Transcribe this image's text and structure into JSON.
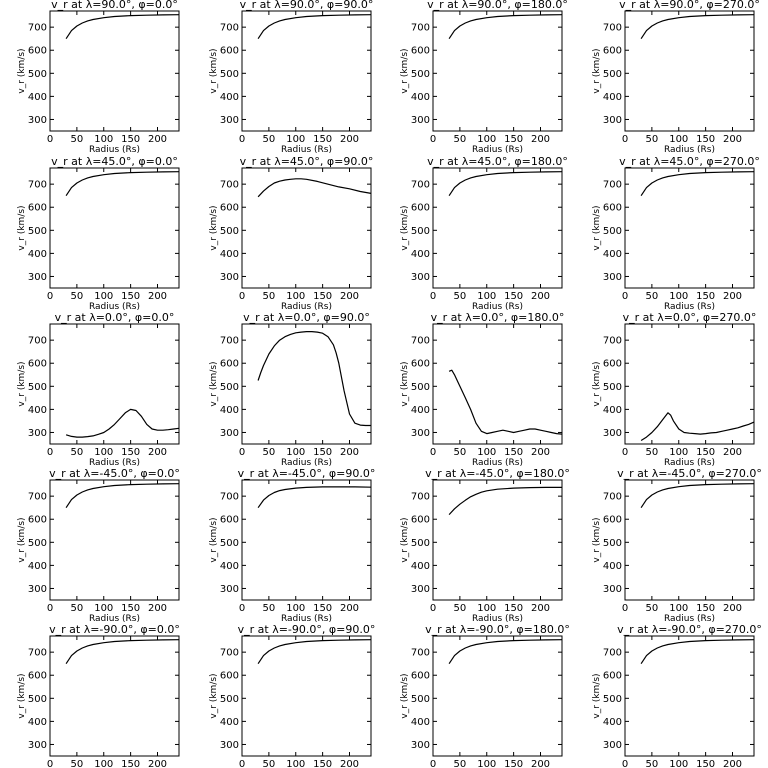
{
  "colors": {
    "background": "#ffffff",
    "ink": "#000000"
  },
  "chart_data": [
    {
      "type": "line",
      "title": "v_r at λ=90.0°, φ=0.0°",
      "xlabel": "Radius (Rs)",
      "ylabel": "v_r (km/s)",
      "xlim": [
        0,
        240
      ],
      "ylim": [
        250,
        770
      ],
      "x_ticks": [
        0,
        50,
        100,
        150,
        200
      ],
      "y_ticks": [
        300,
        400,
        500,
        600,
        700
      ],
      "x": [
        30,
        40,
        50,
        60,
        70,
        80,
        100,
        120,
        150,
        180,
        210,
        240
      ],
      "y": [
        650,
        685,
        705,
        718,
        727,
        733,
        741,
        746,
        750,
        752,
        753,
        754
      ]
    },
    {
      "type": "line",
      "title": "v_r at λ=90.0°, φ=90.0°",
      "xlabel": "Radius (Rs)",
      "ylabel": "v_r (km/s)",
      "xlim": [
        0,
        240
      ],
      "ylim": [
        250,
        770
      ],
      "x_ticks": [
        0,
        50,
        100,
        150,
        200
      ],
      "y_ticks": [
        300,
        400,
        500,
        600,
        700
      ],
      "x": [
        30,
        40,
        50,
        60,
        70,
        80,
        100,
        120,
        150,
        180,
        210,
        240
      ],
      "y": [
        650,
        685,
        705,
        718,
        727,
        733,
        741,
        746,
        750,
        752,
        753,
        754
      ]
    },
    {
      "type": "line",
      "title": "v_r at λ=90.0°, φ=180.0°",
      "xlabel": "Radius (Rs)",
      "ylabel": "v_r (km/s)",
      "xlim": [
        0,
        240
      ],
      "ylim": [
        250,
        770
      ],
      "x_ticks": [
        0,
        50,
        100,
        150,
        200
      ],
      "y_ticks": [
        300,
        400,
        500,
        600,
        700
      ],
      "x": [
        30,
        40,
        50,
        60,
        70,
        80,
        100,
        120,
        150,
        180,
        210,
        240
      ],
      "y": [
        650,
        685,
        705,
        718,
        727,
        733,
        741,
        746,
        750,
        752,
        753,
        754
      ]
    },
    {
      "type": "line",
      "title": "v_r at λ=90.0°, φ=270.0°",
      "xlabel": "Radius (Rs)",
      "ylabel": "v_r (km/s)",
      "xlim": [
        0,
        240
      ],
      "ylim": [
        250,
        770
      ],
      "x_ticks": [
        0,
        50,
        100,
        150,
        200
      ],
      "y_ticks": [
        300,
        400,
        500,
        600,
        700
      ],
      "x": [
        30,
        40,
        50,
        60,
        70,
        80,
        100,
        120,
        150,
        180,
        210,
        240
      ],
      "y": [
        650,
        685,
        705,
        718,
        727,
        733,
        741,
        746,
        750,
        752,
        753,
        754
      ]
    },
    {
      "type": "line",
      "title": "v_r at λ=45.0°, φ=0.0°",
      "xlabel": "Radius (Rs)",
      "ylabel": "v_r (km/s)",
      "xlim": [
        0,
        240
      ],
      "ylim": [
        250,
        770
      ],
      "x_ticks": [
        0,
        50,
        100,
        150,
        200
      ],
      "y_ticks": [
        300,
        400,
        500,
        600,
        700
      ],
      "x": [
        30,
        40,
        50,
        60,
        70,
        80,
        100,
        120,
        150,
        180,
        210,
        240
      ],
      "y": [
        650,
        685,
        705,
        718,
        727,
        733,
        741,
        746,
        750,
        752,
        753,
        754
      ]
    },
    {
      "type": "line",
      "title": "v_r at λ=45.0°, φ=90.0°",
      "xlabel": "Radius (Rs)",
      "ylabel": "v_r (km/s)",
      "xlim": [
        0,
        240
      ],
      "ylim": [
        250,
        770
      ],
      "x_ticks": [
        0,
        50,
        100,
        150,
        200
      ],
      "y_ticks": [
        300,
        400,
        500,
        600,
        700
      ],
      "x": [
        30,
        40,
        50,
        60,
        70,
        80,
        90,
        100,
        110,
        120,
        140,
        160,
        180,
        200,
        220,
        240
      ],
      "y": [
        645,
        670,
        690,
        705,
        713,
        718,
        721,
        723,
        723,
        721,
        712,
        700,
        688,
        680,
        668,
        660
      ]
    },
    {
      "type": "line",
      "title": "v_r at λ=45.0°, φ=180.0°",
      "xlabel": "Radius (Rs)",
      "ylabel": "v_r (km/s)",
      "xlim": [
        0,
        240
      ],
      "ylim": [
        250,
        770
      ],
      "x_ticks": [
        0,
        50,
        100,
        150,
        200
      ],
      "y_ticks": [
        300,
        400,
        500,
        600,
        700
      ],
      "x": [
        30,
        40,
        50,
        60,
        70,
        80,
        100,
        120,
        150,
        180,
        210,
        240
      ],
      "y": [
        650,
        685,
        705,
        718,
        727,
        733,
        741,
        746,
        750,
        752,
        753,
        754
      ]
    },
    {
      "type": "line",
      "title": "v_r at λ=45.0°, φ=270.0°",
      "xlabel": "Radius (Rs)",
      "ylabel": "v_r (km/s)",
      "xlim": [
        0,
        240
      ],
      "ylim": [
        250,
        770
      ],
      "x_ticks": [
        0,
        50,
        100,
        150,
        200
      ],
      "y_ticks": [
        300,
        400,
        500,
        600,
        700
      ],
      "x": [
        30,
        40,
        50,
        60,
        70,
        80,
        100,
        120,
        150,
        180,
        210,
        240
      ],
      "y": [
        650,
        685,
        705,
        718,
        727,
        733,
        741,
        746,
        750,
        752,
        753,
        754
      ]
    },
    {
      "type": "line",
      "title": "v_r at λ=0.0°, φ=0.0°",
      "xlabel": "Radius (Rs)",
      "ylabel": "v_r (km/s)",
      "xlim": [
        0,
        240
      ],
      "ylim": [
        250,
        770
      ],
      "x_ticks": [
        0,
        50,
        100,
        150,
        200
      ],
      "y_ticks": [
        300,
        400,
        500,
        600,
        700
      ],
      "x": [
        30,
        40,
        50,
        60,
        70,
        80,
        90,
        100,
        110,
        120,
        130,
        140,
        150,
        160,
        170,
        180,
        190,
        200,
        210,
        220,
        230,
        240
      ],
      "y": [
        290,
        283,
        280,
        280,
        282,
        285,
        292,
        300,
        315,
        335,
        360,
        385,
        400,
        395,
        370,
        335,
        315,
        310,
        310,
        312,
        315,
        318
      ]
    },
    {
      "type": "line",
      "title": "v_r at λ=0.0°, φ=90.0°",
      "xlabel": "Radius (Rs)",
      "ylabel": "v_r (km/s)",
      "xlim": [
        0,
        240
      ],
      "ylim": [
        250,
        770
      ],
      "x_ticks": [
        0,
        50,
        100,
        150,
        200
      ],
      "y_ticks": [
        300,
        400,
        500,
        600,
        700
      ],
      "x": [
        30,
        35,
        40,
        45,
        50,
        60,
        70,
        80,
        90,
        100,
        110,
        120,
        130,
        140,
        150,
        160,
        170,
        175,
        180,
        190,
        200,
        210,
        220,
        230,
        240
      ],
      "y": [
        525,
        560,
        590,
        615,
        640,
        675,
        700,
        715,
        725,
        732,
        735,
        737,
        737,
        735,
        730,
        715,
        680,
        645,
        600,
        480,
        380,
        340,
        332,
        330,
        330
      ]
    },
    {
      "type": "line",
      "title": "v_r at λ=0.0°, φ=180.0°",
      "xlabel": "Radius (Rs)",
      "ylabel": "v_r (km/s)",
      "xlim": [
        0,
        240
      ],
      "ylim": [
        250,
        770
      ],
      "x_ticks": [
        0,
        50,
        100,
        150,
        200
      ],
      "y_ticks": [
        300,
        400,
        500,
        600,
        700
      ],
      "x": [
        30,
        35,
        40,
        50,
        60,
        70,
        80,
        90,
        100,
        110,
        120,
        130,
        140,
        150,
        160,
        170,
        180,
        190,
        200,
        210,
        220,
        230,
        240
      ],
      "y": [
        565,
        570,
        550,
        500,
        450,
        400,
        340,
        305,
        295,
        300,
        305,
        310,
        305,
        300,
        305,
        310,
        315,
        315,
        310,
        305,
        300,
        295,
        293
      ]
    },
    {
      "type": "line",
      "title": "v_r at λ=0.0°, φ=270.0°",
      "xlabel": "Radius (Rs)",
      "ylabel": "v_r (km/s)",
      "xlim": [
        0,
        240
      ],
      "ylim": [
        250,
        770
      ],
      "x_ticks": [
        0,
        50,
        100,
        150,
        200
      ],
      "y_ticks": [
        300,
        400,
        500,
        600,
        700
      ],
      "x": [
        30,
        40,
        50,
        60,
        70,
        75,
        80,
        85,
        90,
        100,
        110,
        120,
        130,
        140,
        150,
        160,
        170,
        180,
        190,
        200,
        210,
        220,
        230,
        240
      ],
      "y": [
        265,
        280,
        300,
        325,
        355,
        370,
        385,
        375,
        350,
        315,
        300,
        297,
        295,
        293,
        295,
        298,
        300,
        305,
        310,
        315,
        320,
        328,
        335,
        345
      ]
    },
    {
      "type": "line",
      "title": "v_r at λ=-45.0°, φ=0.0°",
      "xlabel": "Radius (Rs)",
      "ylabel": "v_r (km/s)",
      "xlim": [
        0,
        240
      ],
      "ylim": [
        250,
        770
      ],
      "x_ticks": [
        0,
        50,
        100,
        150,
        200
      ],
      "y_ticks": [
        300,
        400,
        500,
        600,
        700
      ],
      "x": [
        30,
        40,
        50,
        60,
        70,
        80,
        100,
        120,
        150,
        180,
        210,
        240
      ],
      "y": [
        650,
        685,
        705,
        718,
        727,
        733,
        741,
        746,
        750,
        752,
        753,
        754
      ]
    },
    {
      "type": "line",
      "title": "v_r at λ=-45.0°, φ=90.0°",
      "xlabel": "Radius (Rs)",
      "ylabel": "v_r (km/s)",
      "xlim": [
        0,
        240
      ],
      "ylim": [
        250,
        770
      ],
      "x_ticks": [
        0,
        50,
        100,
        150,
        200
      ],
      "y_ticks": [
        300,
        400,
        500,
        600,
        700
      ],
      "x": [
        30,
        40,
        50,
        60,
        70,
        80,
        100,
        120,
        150,
        180,
        210,
        240
      ],
      "y": [
        650,
        683,
        703,
        716,
        724,
        729,
        735,
        738,
        740,
        740,
        740,
        739
      ]
    },
    {
      "type": "line",
      "title": "v_r at λ=-45.0°, φ=180.0°",
      "xlabel": "Radius (Rs)",
      "ylabel": "v_r (km/s)",
      "xlim": [
        0,
        240
      ],
      "ylim": [
        250,
        770
      ],
      "x_ticks": [
        0,
        50,
        100,
        150,
        200
      ],
      "y_ticks": [
        300,
        400,
        500,
        600,
        700
      ],
      "x": [
        30,
        40,
        50,
        60,
        70,
        80,
        90,
        100,
        120,
        150,
        180,
        210,
        240
      ],
      "y": [
        620,
        645,
        665,
        682,
        697,
        708,
        717,
        723,
        730,
        735,
        737,
        738,
        738
      ]
    },
    {
      "type": "line",
      "title": "v_r at λ=-45.0°, φ=270.0°",
      "xlabel": "Radius (Rs)",
      "ylabel": "v_r (km/s)",
      "xlim": [
        0,
        240
      ],
      "ylim": [
        250,
        770
      ],
      "x_ticks": [
        0,
        50,
        100,
        150,
        200
      ],
      "y_ticks": [
        300,
        400,
        500,
        600,
        700
      ],
      "x": [
        30,
        40,
        50,
        60,
        70,
        80,
        100,
        120,
        150,
        180,
        210,
        240
      ],
      "y": [
        650,
        685,
        705,
        718,
        727,
        733,
        741,
        746,
        750,
        752,
        753,
        754
      ]
    },
    {
      "type": "line",
      "title": "v_r at λ=-90.0°, φ=0.0°",
      "xlabel": "Radius (Rs)",
      "ylabel": "v_r (km/s)",
      "xlim": [
        0,
        240
      ],
      "ylim": [
        250,
        770
      ],
      "x_ticks": [
        0,
        50,
        100,
        150,
        200
      ],
      "y_ticks": [
        300,
        400,
        500,
        600,
        700
      ],
      "x": [
        30,
        40,
        50,
        60,
        70,
        80,
        100,
        120,
        150,
        180,
        210,
        240
      ],
      "y": [
        650,
        685,
        705,
        718,
        727,
        733,
        741,
        746,
        750,
        752,
        753,
        754
      ]
    },
    {
      "type": "line",
      "title": "v_r at λ=-90.0°, φ=90.0°",
      "xlabel": "Radius (Rs)",
      "ylabel": "v_r (km/s)",
      "xlim": [
        0,
        240
      ],
      "ylim": [
        250,
        770
      ],
      "x_ticks": [
        0,
        50,
        100,
        150,
        200
      ],
      "y_ticks": [
        300,
        400,
        500,
        600,
        700
      ],
      "x": [
        30,
        40,
        50,
        60,
        70,
        80,
        100,
        120,
        150,
        180,
        210,
        240
      ],
      "y": [
        650,
        685,
        705,
        718,
        727,
        733,
        741,
        746,
        750,
        752,
        753,
        754
      ]
    },
    {
      "type": "line",
      "title": "v_r at λ=-90.0°, φ=180.0°",
      "xlabel": "Radius (Rs)",
      "ylabel": "v_r (km/s)",
      "xlim": [
        0,
        240
      ],
      "ylim": [
        250,
        770
      ],
      "x_ticks": [
        0,
        50,
        100,
        150,
        200
      ],
      "y_ticks": [
        300,
        400,
        500,
        600,
        700
      ],
      "x": [
        30,
        40,
        50,
        60,
        70,
        80,
        100,
        120,
        150,
        180,
        210,
        240
      ],
      "y": [
        650,
        685,
        705,
        718,
        727,
        733,
        741,
        746,
        750,
        752,
        753,
        754
      ]
    },
    {
      "type": "line",
      "title": "v_r at λ=-90.0°, φ=270.0°",
      "xlabel": "Radius (Rs)",
      "ylabel": "v_r (km/s)",
      "xlim": [
        0,
        240
      ],
      "ylim": [
        250,
        770
      ],
      "x_ticks": [
        0,
        50,
        100,
        150,
        200
      ],
      "y_ticks": [
        300,
        400,
        500,
        600,
        700
      ],
      "x": [
        30,
        40,
        50,
        60,
        70,
        80,
        100,
        120,
        150,
        180,
        210,
        240
      ],
      "y": [
        650,
        685,
        705,
        718,
        727,
        733,
        741,
        746,
        750,
        752,
        753,
        754
      ]
    }
  ]
}
